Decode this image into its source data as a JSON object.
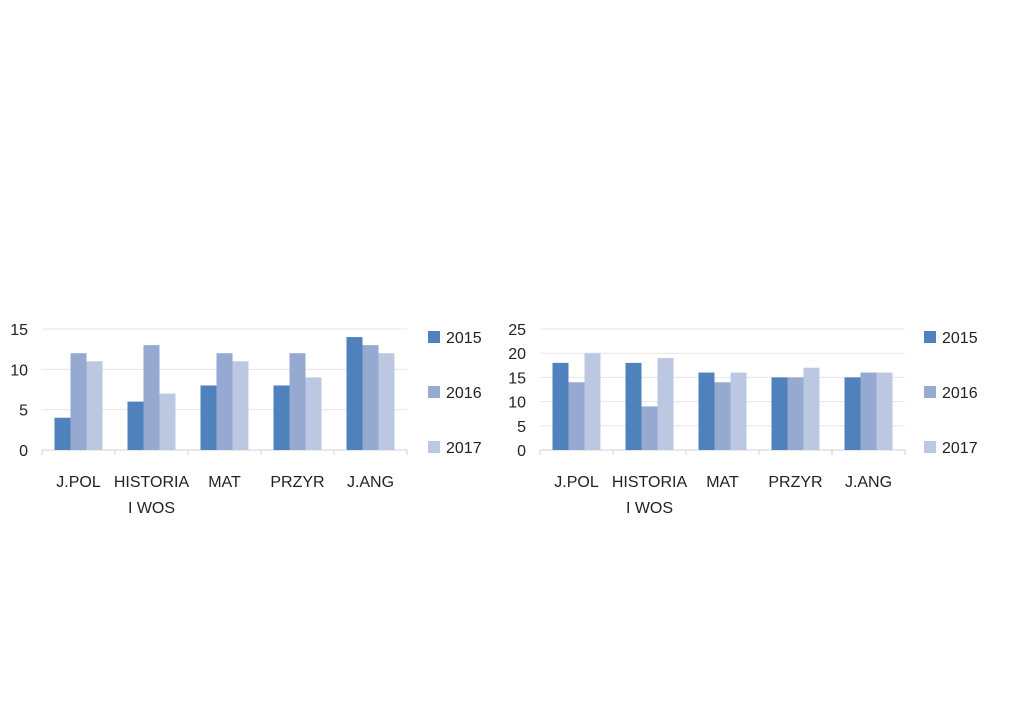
{
  "chart_data": [
    {
      "type": "bar",
      "categories": [
        "J.POL",
        "HISTORIA I WOS",
        "MAT",
        "PRZYR",
        "J.ANG"
      ],
      "category_lines": [
        [
          "J.POL"
        ],
        [
          "HISTORIA",
          "I WOS"
        ],
        [
          "MAT"
        ],
        [
          "PRZYR"
        ],
        [
          "J.ANG"
        ]
      ],
      "series": [
        {
          "name": "2015",
          "color": "#4f81bd",
          "values": [
            4,
            6,
            8,
            8,
            14
          ]
        },
        {
          "name": "2016",
          "color": "#95a9d1",
          "values": [
            12,
            13,
            12,
            12,
            13
          ]
        },
        {
          "name": "2017",
          "color": "#bcc8e2",
          "values": [
            11,
            7,
            11,
            9,
            12
          ]
        }
      ],
      "ylim": [
        0,
        15
      ],
      "yticks": [
        0,
        5,
        10,
        15
      ],
      "title": "",
      "xlabel": "",
      "ylabel": "",
      "grid": true,
      "legend": "right"
    },
    {
      "type": "bar",
      "categories": [
        "J.POL",
        "HISTORIA I WOS",
        "MAT",
        "PRZYR",
        "J.ANG"
      ],
      "category_lines": [
        [
          "J.POL"
        ],
        [
          "HISTORIA",
          "I WOS"
        ],
        [
          "MAT"
        ],
        [
          "PRZYR"
        ],
        [
          "J.ANG"
        ]
      ],
      "series": [
        {
          "name": "2015",
          "color": "#4f81bd",
          "values": [
            18,
            18,
            16,
            15,
            15
          ]
        },
        {
          "name": "2016",
          "color": "#95a9d1",
          "values": [
            14,
            9,
            14,
            15,
            16
          ]
        },
        {
          "name": "2017",
          "color": "#bcc8e2",
          "values": [
            20,
            19,
            16,
            17,
            16
          ]
        }
      ],
      "ylim": [
        0,
        25
      ],
      "yticks": [
        0,
        5,
        10,
        15,
        20,
        25
      ],
      "title": "",
      "xlabel": "",
      "ylabel": "",
      "grid": true,
      "legend": "right"
    }
  ]
}
